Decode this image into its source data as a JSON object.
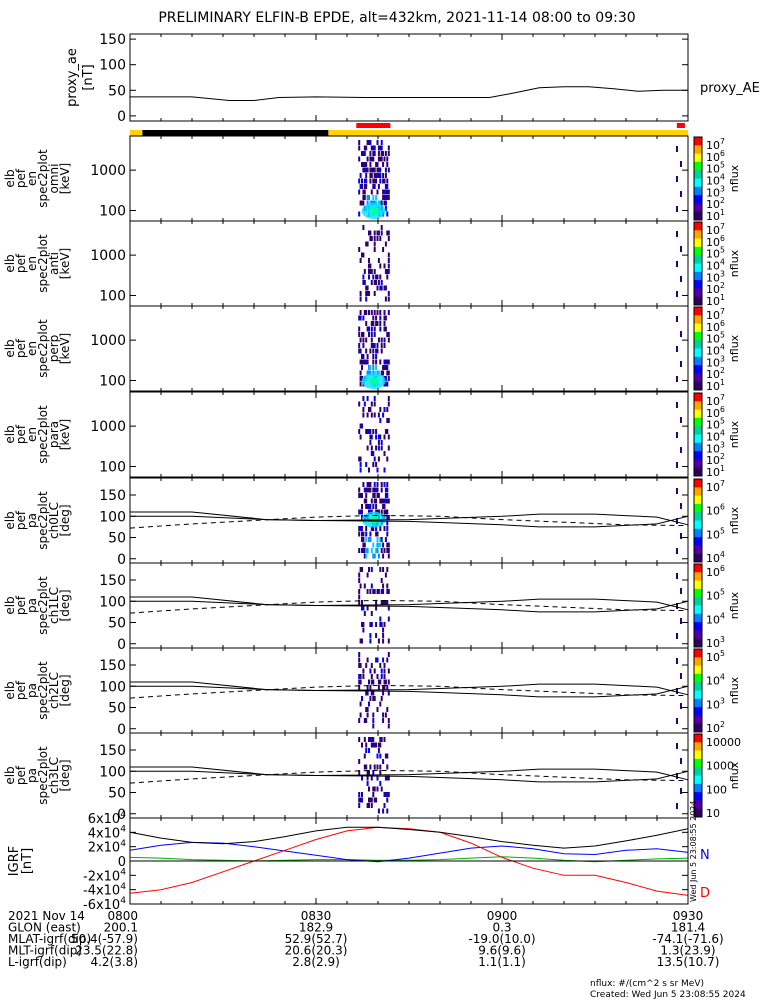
{
  "title": "PRELIMINARY ELFIN-B EPDE, alt=432km, 2021-11-14 08:00 to 09:30",
  "colors": {
    "ae_line": "#000000",
    "status_yellow": "#ffd400",
    "status_black": "#000000",
    "science_red": "#ff0000",
    "igrf_N": "#0000ff",
    "igrf_E": "#00b000",
    "igrf_D": "#ff0000",
    "igrf_total": "#000000"
  },
  "proxy_ae": {
    "ylabel": [
      "proxy_ae",
      "[nT]"
    ],
    "yticks": [
      "0",
      "50",
      "100",
      "150"
    ],
    "ylim": [
      -10,
      160
    ],
    "legend": "proxy_AE"
  },
  "spectrograms": [
    {
      "ylabel": [
        "elb",
        "pef",
        "en",
        "spec2plot",
        "omni",
        "[keV]"
      ],
      "yticks": [
        "100",
        "1000"
      ],
      "ylim": [
        55,
        7000
      ],
      "scale": "log",
      "colorbar": "nflux",
      "cbar_ticks": [
        "10^1",
        "10^2",
        "10^3",
        "10^4",
        "10^5",
        "10^6",
        "10^7"
      ]
    },
    {
      "ylabel": [
        "elb",
        "pef",
        "en",
        "spec2plot",
        "anti",
        "[keV]"
      ],
      "yticks": [
        "100",
        "1000"
      ],
      "ylim": [
        55,
        7000
      ],
      "scale": "log",
      "colorbar": "nflux",
      "cbar_ticks": [
        "10^1",
        "10^2",
        "10^3",
        "10^4",
        "10^5",
        "10^6",
        "10^7"
      ]
    },
    {
      "ylabel": [
        "elb",
        "pef",
        "en",
        "spec2plot",
        "perp",
        "[keV]"
      ],
      "yticks": [
        "100",
        "1000"
      ],
      "ylim": [
        55,
        7000
      ],
      "scale": "log",
      "colorbar": "nflux",
      "cbar_ticks": [
        "10^1",
        "10^2",
        "10^3",
        "10^4",
        "10^5",
        "10^6",
        "10^7"
      ]
    },
    {
      "ylabel": [
        "elb",
        "pef",
        "en",
        "spec2plot",
        "para",
        "[keV]"
      ],
      "yticks": [
        "100",
        "1000"
      ],
      "ylim": [
        55,
        7000
      ],
      "scale": "log",
      "colorbar": "nflux",
      "cbar_ticks": [
        "10^1",
        "10^2",
        "10^3",
        "10^4",
        "10^5",
        "10^6",
        "10^7"
      ]
    },
    {
      "ylabel": [
        "elb",
        "pef",
        "pa",
        "spec2plot",
        "ch0LC",
        "[deg]"
      ],
      "yticks": [
        "0",
        "50",
        "100",
        "150"
      ],
      "ylim": [
        -10,
        190
      ],
      "scale": "linear",
      "colorbar": "nflux",
      "cbar_ticks": [
        "10^4",
        "10^5",
        "10^6",
        "10^7"
      ]
    },
    {
      "ylabel": [
        "elb",
        "pef",
        "pa",
        "spec2plot",
        "ch1LC",
        "[deg]"
      ],
      "yticks": [
        "0",
        "50",
        "100",
        "150"
      ],
      "ylim": [
        -10,
        190
      ],
      "scale": "linear",
      "colorbar": "nflux",
      "cbar_ticks": [
        "10^3",
        "10^4",
        "10^5",
        "10^6"
      ]
    },
    {
      "ylabel": [
        "elb",
        "pef",
        "pa",
        "spec2plot",
        "ch2LC",
        "[deg]"
      ],
      "yticks": [
        "0",
        "50",
        "100",
        "150"
      ],
      "ylim": [
        -10,
        190
      ],
      "scale": "linear",
      "colorbar": "nflux",
      "cbar_ticks": [
        "10^2",
        "10^3",
        "10^4",
        "10^5"
      ]
    },
    {
      "ylabel": [
        "elb",
        "pef",
        "pa",
        "spec2plot",
        "ch3LC",
        "[deg]"
      ],
      "yticks": [
        "0",
        "50",
        "100",
        "150"
      ],
      "ylim": [
        -10,
        190
      ],
      "scale": "linear",
      "colorbar": "nflux",
      "cbar_ticks": [
        "10",
        "100",
        "1000",
        "10000"
      ]
    }
  ],
  "igrf": {
    "ylabel": [
      "IGRF",
      "[nT]"
    ],
    "yticks": [
      "-6x10^4",
      "-4x10^4",
      "-2x10^4",
      "0",
      "2x10^4",
      "4x10^4",
      "6x10^4"
    ],
    "ylim": [
      -60000,
      60000
    ],
    "labels": [
      "N",
      "D"
    ]
  },
  "chart_data": {
    "type": "line",
    "title": "PRELIMINARY ELFIN-B EPDE, alt=432km, 2021-11-14 08:00 to 09:30",
    "x_unit": "minutes after 08:00",
    "xlim": [
      0,
      90
    ],
    "xtick_labels": [
      "0800",
      "0830",
      "0900",
      "0930"
    ],
    "proxy_ae": {
      "x": [
        0,
        10,
        16,
        20,
        24,
        30,
        38,
        46,
        58,
        62,
        66,
        70,
        74,
        78,
        82,
        86,
        90
      ],
      "y": [
        37,
        37,
        30,
        30,
        36,
        37,
        36,
        36,
        36,
        45,
        55,
        57,
        57,
        53,
        48,
        50,
        50
      ]
    },
    "loss_cone": {
      "x": [
        0,
        10,
        22,
        30,
        45,
        60,
        66,
        75,
        85,
        90
      ],
      "y": [
        100,
        100,
        92,
        90,
        88,
        80,
        75,
        75,
        82,
        100
      ]
    },
    "loss_cone_upper": {
      "x": [
        0,
        10,
        22,
        30,
        45,
        60,
        66,
        75,
        85,
        90
      ],
      "y": [
        110,
        110,
        92,
        90,
        92,
        100,
        105,
        105,
        98,
        80
      ]
    },
    "loss_cone_dashed": {
      "x": [
        0,
        10,
        20,
        30,
        40,
        50,
        60,
        70,
        80,
        90
      ],
      "y": [
        72,
        82,
        90,
        98,
        102,
        100,
        92,
        86,
        80,
        78
      ]
    },
    "igrf": {
      "x": [
        0,
        5,
        10,
        15,
        20,
        25,
        30,
        35,
        40,
        45,
        50,
        55,
        60,
        65,
        70,
        75,
        80,
        85,
        90
      ],
      "total": [
        40000,
        32000,
        26000,
        24000,
        27000,
        34000,
        42000,
        47000,
        47000,
        44000,
        40000,
        34000,
        27000,
        22000,
        18000,
        21000,
        28000,
        36000,
        45000
      ],
      "N": [
        15000,
        22000,
        26000,
        25000,
        20000,
        14000,
        8000,
        2000,
        -1000,
        4000,
        11000,
        18000,
        21000,
        17000,
        10000,
        9000,
        15000,
        17000,
        12000
      ],
      "E": [
        5000,
        4000,
        2000,
        1000,
        0,
        1000,
        2000,
        2000,
        1000,
        1000,
        2000,
        4000,
        6000,
        4000,
        1000,
        -1000,
        1000,
        3000,
        4000
      ],
      "D": [
        -45000,
        -40000,
        -30000,
        -15000,
        0,
        15000,
        30000,
        42000,
        47000,
        45000,
        40000,
        25000,
        5000,
        -10000,
        -20000,
        -20000,
        -30000,
        -42000,
        -48000
      ]
    },
    "status_bar": [
      {
        "from": 0,
        "to": 2,
        "color": "yellow"
      },
      {
        "from": 2,
        "to": 32,
        "color": "black"
      },
      {
        "from": 32,
        "to": 90,
        "color": "yellow"
      }
    ],
    "science_zones": [
      {
        "from": 36.5,
        "to": 42
      },
      {
        "from": 88.2,
        "to": 89.5
      }
    ],
    "burst": {
      "from": 36.8,
      "to": 41.8
    }
  },
  "footer": {
    "rows": [
      [
        "2021 Nov 14",
        "0800",
        "0830",
        "0900",
        "0930"
      ],
      [
        "GLON (east)",
        "200.1",
        "182.9",
        "0.3",
        "181.4"
      ],
      [
        "MLAT-igrf(dip)",
        "50.4(-57.9)",
        "52.9(52.7)",
        "-19.0(10.0)",
        "-74.1(-71.6)"
      ],
      [
        "MLT-igrf(dip)",
        "23.5(22.8)",
        "20.6(20.3)",
        "9.6(9.6)",
        "1.3(23.9)"
      ],
      [
        "L-igrf(dip)",
        "4.2(3.8)",
        "2.8(2.9)",
        "1.1(1.1)",
        "13.5(10.7)"
      ]
    ],
    "note1": "nflux: #/(cm^2 s sr MeV)",
    "note2": "Created: Wed Jun  5 23:08:55 2024",
    "vertical_stamp": "Wed Jun  5 23:08:55 2024"
  }
}
